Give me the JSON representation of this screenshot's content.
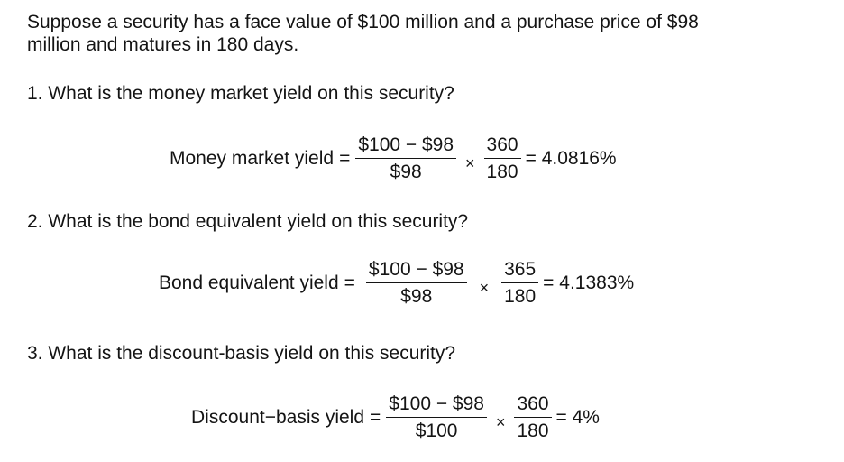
{
  "intro": {
    "line1": "Suppose a security has a face value of $100 million and a purchase price of $98",
    "line2": "million and matures in 180 days."
  },
  "questions": [
    {
      "text": "1.  What is the money market yield on this security?",
      "formula": {
        "label": "Money market yield",
        "equals": "=",
        "numerator": "$100 − $98",
        "denominator": "$98",
        "times": "×",
        "numerator2": "360",
        "denominator2": "180",
        "result": "= 4.0816%"
      }
    },
    {
      "text": "2. What is the bond equivalent yield on this security?",
      "formula": {
        "label": "Bond equivalent yield",
        "equals": "=",
        "numerator": "$100 − $98",
        "denominator": "$98",
        "times": "×",
        "numerator2": "365",
        "denominator2": "180",
        "result": "= 4.1383%"
      }
    },
    {
      "text": "3. What is the discount-basis yield on this security?",
      "formula": {
        "label": "Discount−basis yield",
        "equals": "=",
        "numerator": "$100 − $98",
        "denominator": "$100",
        "times": "×",
        "numerator2": "360",
        "denominator2": "180",
        "result": "= 4%"
      }
    }
  ]
}
